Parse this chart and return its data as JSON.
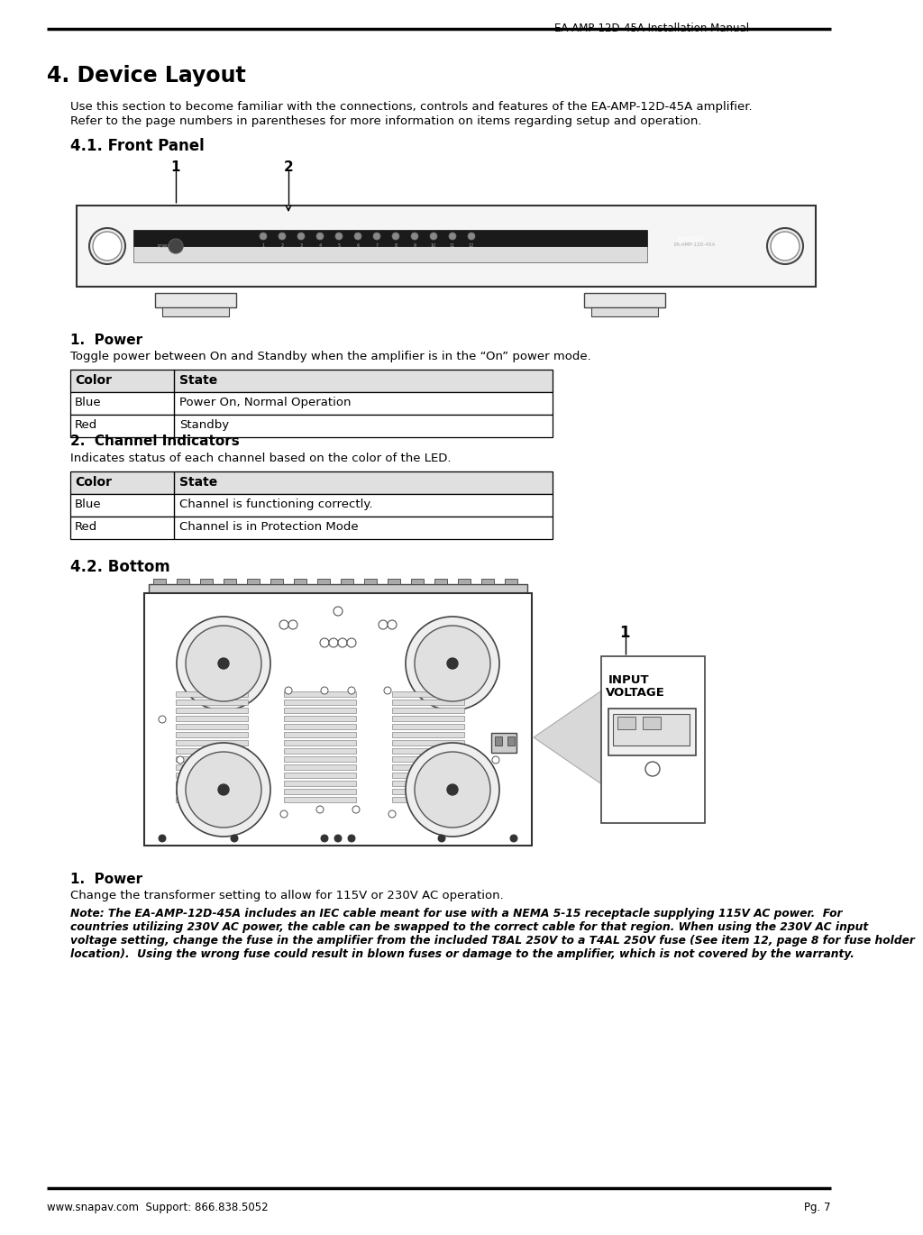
{
  "page_title": "4. Device Layout",
  "header_right": "EA-AMP-12D-45A Installation Manual",
  "footer_left": "www.snapav.com  Support: 866.838.5052",
  "footer_right": "Pg. 7",
  "intro_line1": "Use this section to become familiar with the connections, controls and features of the EA-AMP-12D-45A amplifier.",
  "intro_line2": "Refer to the page numbers in parentheses for more information on items regarding setup and operation.",
  "section_41": "4.1. Front Panel",
  "section_42": "4.2. Bottom",
  "power_heading": "1.  Power",
  "power_desc": "Toggle power between On and Standby when the amplifier is in the “On” power mode.",
  "channel_heading": "2.  Channel Indicators",
  "channel_desc": "Indicates status of each channel based on the color of the LED.",
  "bottom_power_heading": "1.  Power",
  "bottom_power_desc": "Change the transformer setting to allow for 115V or 230V AC operation.",
  "note_lines": [
    "Note: The EA-AMP-12D-45A includes an IEC cable meant for use with a NEMA 5-15 receptacle supplying 115V AC power.  For",
    "countries utilizing 230V AC power, the cable can be swapped to the correct cable for that region. When using the 230V AC input",
    "voltage setting, change the fuse in the amplifier from the included T8AL 250V to a T4AL 250V fuse (See item 12, page 8 for fuse holder",
    "location).  Using the wrong fuse could result in blown fuses or damage to the amplifier, which is not covered by the warranty."
  ],
  "table1_headers": [
    "Color",
    "State"
  ],
  "table1_rows": [
    [
      "Blue",
      "Power On, Normal Operation"
    ],
    [
      "Red",
      "Standby"
    ]
  ],
  "table2_headers": [
    "Color",
    "State"
  ],
  "table2_rows": [
    [
      "Blue",
      "Channel is functioning correctly."
    ],
    [
      "Red",
      "Channel is in Protection Mode"
    ]
  ],
  "bg_color": "#ffffff",
  "text_color": "#000000"
}
